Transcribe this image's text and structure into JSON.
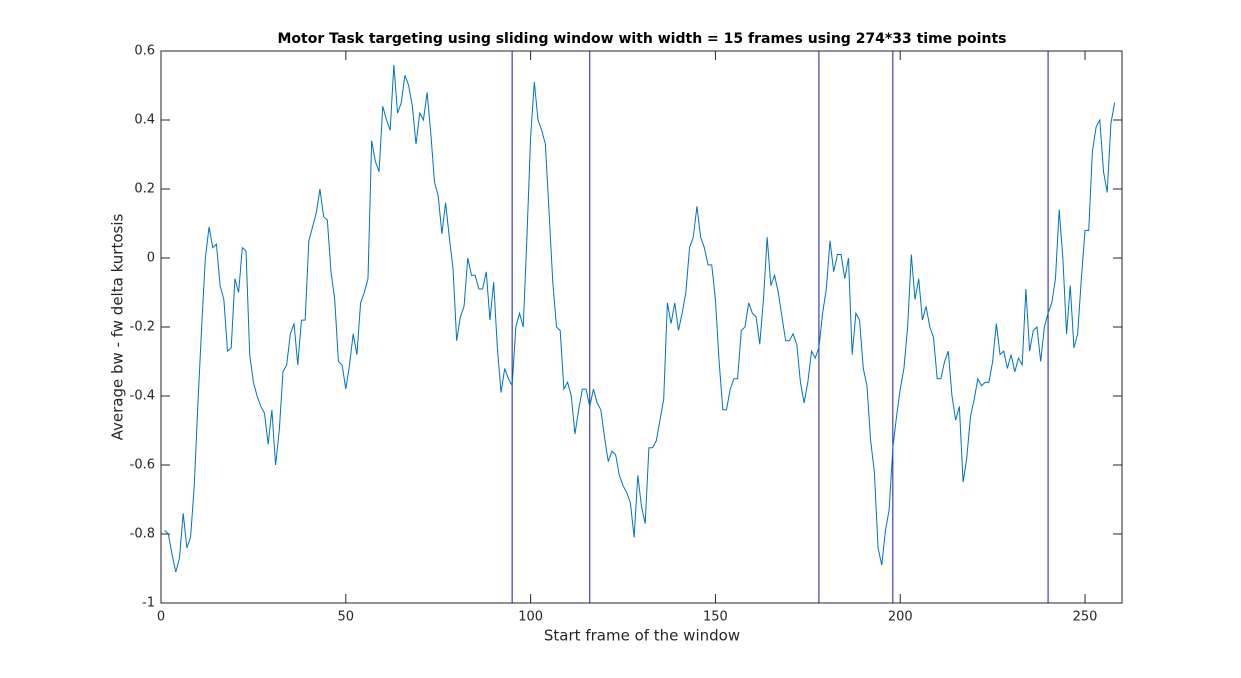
{
  "chart_data": {
    "type": "line",
    "title": "Motor Task targeting using sliding window with width = 15 frames using 274*33 time points",
    "x_label": "Start frame of the window",
    "y_label": "Average bw - fw delta kurtosis",
    "x": [
      1,
      2,
      3,
      4,
      5,
      6,
      7,
      8,
      9,
      10,
      11,
      12,
      13,
      14,
      15,
      16,
      17,
      18,
      19,
      20,
      21,
      22,
      23,
      24,
      25,
      26,
      27,
      28,
      29,
      30,
      31,
      32,
      33,
      34,
      35,
      36,
      37,
      38,
      39,
      40,
      41,
      42,
      43,
      44,
      45,
      46,
      47,
      48,
      49,
      50,
      51,
      52,
      53,
      54,
      55,
      56,
      57,
      58,
      59,
      60,
      61,
      62,
      63,
      64,
      65,
      66,
      67,
      68,
      69,
      70,
      71,
      72,
      73,
      74,
      75,
      76,
      77,
      78,
      79,
      80,
      81,
      82,
      83,
      84,
      85,
      86,
      87,
      88,
      89,
      90,
      91,
      92,
      93,
      94,
      95,
      96,
      97,
      98,
      99,
      100,
      101,
      102,
      103,
      104,
      105,
      106,
      107,
      108,
      109,
      110,
      111,
      112,
      113,
      114,
      115,
      116,
      117,
      118,
      119,
      120,
      121,
      122,
      123,
      124,
      125,
      126,
      127,
      128,
      129,
      130,
      131,
      132,
      133,
      134,
      135,
      136,
      137,
      138,
      139,
      140,
      141,
      142,
      143,
      144,
      145,
      146,
      147,
      148,
      149,
      150,
      151,
      152,
      153,
      154,
      155,
      156,
      157,
      158,
      159,
      160,
      161,
      162,
      163,
      164,
      165,
      166,
      167,
      168,
      169,
      170,
      171,
      172,
      173,
      174,
      175,
      176,
      177,
      178,
      179,
      180,
      181,
      182,
      183,
      184,
      185,
      186,
      187,
      188,
      189,
      190,
      191,
      192,
      193,
      194,
      195,
      196,
      197,
      198,
      199,
      200,
      201,
      202,
      203,
      204,
      205,
      206,
      207,
      208,
      209,
      210,
      211,
      212,
      213,
      214,
      215,
      216,
      217,
      218,
      219,
      220,
      221,
      222,
      223,
      224,
      225,
      226,
      227,
      228,
      229,
      230,
      231,
      232,
      233,
      234,
      235,
      236,
      237,
      238,
      239,
      240,
      241,
      242,
      243,
      244,
      245,
      246,
      247,
      248,
      249,
      250,
      251,
      252,
      253,
      254,
      255,
      256,
      257,
      258
    ],
    "series": [
      {
        "color": "#0072bd",
        "values": [
          -0.79,
          -0.8,
          -0.86,
          -0.91,
          -0.87,
          -0.74,
          -0.84,
          -0.81,
          -0.66,
          -0.42,
          -0.2,
          0.0,
          0.09,
          0.03,
          0.04,
          -0.08,
          -0.12,
          -0.27,
          -0.26,
          -0.06,
          -0.1,
          0.03,
          0.02,
          -0.28,
          -0.36,
          -0.4,
          -0.43,
          -0.45,
          -0.54,
          -0.44,
          -0.6,
          -0.5,
          -0.33,
          -0.31,
          -0.22,
          -0.19,
          -0.31,
          -0.18,
          -0.18,
          0.05,
          0.09,
          0.13,
          0.2,
          0.12,
          0.11,
          -0.04,
          -0.12,
          -0.3,
          -0.31,
          -0.38,
          -0.31,
          -0.22,
          -0.28,
          -0.13,
          -0.1,
          -0.06,
          0.34,
          0.28,
          0.25,
          0.44,
          0.4,
          0.37,
          0.56,
          0.42,
          0.45,
          0.53,
          0.5,
          0.44,
          0.33,
          0.42,
          0.4,
          0.48,
          0.36,
          0.22,
          0.18,
          0.07,
          0.16,
          0.06,
          -0.03,
          -0.24,
          -0.17,
          -0.14,
          0.0,
          -0.05,
          -0.05,
          -0.09,
          -0.09,
          -0.04,
          -0.18,
          -0.07,
          -0.26,
          -0.39,
          -0.32,
          -0.35,
          -0.37,
          -0.2,
          -0.16,
          -0.2,
          0.06,
          0.35,
          0.51,
          0.4,
          0.37,
          0.33,
          0.13,
          -0.07,
          -0.2,
          -0.21,
          -0.38,
          -0.36,
          -0.4,
          -0.51,
          -0.44,
          -0.38,
          -0.38,
          -0.43,
          -0.38,
          -0.42,
          -0.44,
          -0.52,
          -0.59,
          -0.56,
          -0.57,
          -0.63,
          -0.66,
          -0.68,
          -0.71,
          -0.81,
          -0.63,
          -0.72,
          -0.77,
          -0.55,
          -0.55,
          -0.53,
          -0.47,
          -0.41,
          -0.13,
          -0.19,
          -0.13,
          -0.21,
          -0.16,
          -0.1,
          0.03,
          0.06,
          0.15,
          0.06,
          0.03,
          -0.02,
          -0.02,
          -0.12,
          -0.3,
          -0.44,
          -0.44,
          -0.38,
          -0.35,
          -0.35,
          -0.21,
          -0.2,
          -0.13,
          -0.16,
          -0.17,
          -0.25,
          -0.12,
          0.06,
          -0.08,
          -0.05,
          -0.1,
          -0.17,
          -0.24,
          -0.24,
          -0.22,
          -0.25,
          -0.36,
          -0.42,
          -0.36,
          -0.27,
          -0.29,
          -0.26,
          -0.16,
          -0.09,
          0.05,
          -0.04,
          0.01,
          0.01,
          -0.06,
          0.0,
          -0.28,
          -0.16,
          -0.18,
          -0.32,
          -0.37,
          -0.53,
          -0.62,
          -0.84,
          -0.89,
          -0.79,
          -0.73,
          -0.55,
          -0.46,
          -0.38,
          -0.32,
          -0.2,
          0.01,
          -0.12,
          -0.06,
          -0.18,
          -0.14,
          -0.2,
          -0.23,
          -0.35,
          -0.35,
          -0.3,
          -0.27,
          -0.4,
          -0.47,
          -0.43,
          -0.65,
          -0.58,
          -0.46,
          -0.41,
          -0.35,
          -0.37,
          -0.36,
          -0.36,
          -0.3,
          -0.19,
          -0.28,
          -0.27,
          -0.32,
          -0.28,
          -0.33,
          -0.29,
          -0.31,
          -0.09,
          -0.27,
          -0.21,
          -0.2,
          -0.3,
          -0.2,
          -0.16,
          -0.13,
          -0.06,
          0.14,
          0.0,
          -0.22,
          -0.08,
          -0.26,
          -0.22,
          -0.06,
          0.08,
          0.08,
          0.31,
          0.38,
          0.4,
          0.25,
          0.19,
          0.39,
          0.45
        ]
      }
    ],
    "vlines": {
      "color": "#1a1a99",
      "x": [
        95,
        116,
        178,
        198,
        240
      ]
    },
    "xlim": [
      0,
      260
    ],
    "xticks": [
      0,
      50,
      100,
      150,
      200,
      250
    ],
    "ylim": [
      -1,
      0.6
    ],
    "yticks": [
      -1,
      -0.8,
      -0.6,
      -0.4,
      -0.2,
      0,
      0.2,
      0.4,
      0.6
    ]
  }
}
